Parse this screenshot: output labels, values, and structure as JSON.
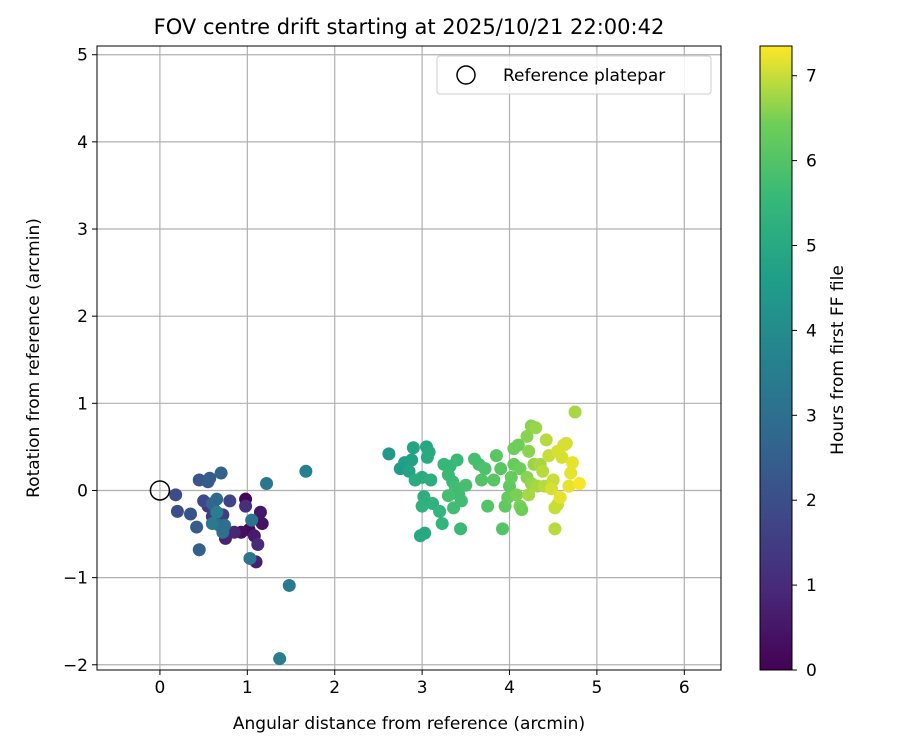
{
  "chart_data": {
    "type": "scatter",
    "title": "FOV centre drift starting at 2025/10/21 22:00:42",
    "xlabel": "Angular distance from reference (arcmin)",
    "ylabel": "Rotation from reference (arcmin)",
    "xlim": [
      -0.72,
      6.42
    ],
    "ylim": [
      -2.06,
      5.1
    ],
    "xticks": [
      0,
      1,
      2,
      3,
      4,
      5,
      6
    ],
    "yticks": [
      -2,
      -1,
      0,
      1,
      2,
      3,
      4,
      5
    ],
    "xtick_labels": [
      "0",
      "1",
      "2",
      "3",
      "4",
      "5",
      "6"
    ],
    "ytick_labels": [
      "−2",
      "−1",
      "0",
      "1",
      "2",
      "3",
      "4",
      "5"
    ],
    "grid": true,
    "legend": {
      "label": "Reference platepar",
      "placement": "top-right"
    },
    "reference_point": {
      "x": 0,
      "y": 0
    },
    "colorbar": {
      "label": "Hours from first FF file",
      "colormap": "viridis",
      "range": [
        0,
        7.35
      ],
      "ticks": [
        0,
        1,
        2,
        3,
        4,
        5,
        6,
        7
      ],
      "tick_labels": [
        "0",
        "1",
        "2",
        "3",
        "4",
        "5",
        "6",
        "7"
      ]
    },
    "points": [
      {
        "x": 0.98,
        "y": -0.1,
        "t": 0.1
      },
      {
        "x": 1.02,
        "y": -0.45,
        "t": 0.2
      },
      {
        "x": 0.93,
        "y": -0.48,
        "t": 0.3
      },
      {
        "x": 1.17,
        "y": -0.38,
        "t": 0.4
      },
      {
        "x": 1.15,
        "y": -0.25,
        "t": 0.5
      },
      {
        "x": 1.08,
        "y": -0.52,
        "t": 0.6
      },
      {
        "x": 1.1,
        "y": -0.82,
        "t": 0.7
      },
      {
        "x": 0.75,
        "y": -0.55,
        "t": 0.8
      },
      {
        "x": 0.85,
        "y": -0.48,
        "t": 0.9
      },
      {
        "x": 1.12,
        "y": -0.62,
        "t": 1.0
      },
      {
        "x": 0.98,
        "y": -0.18,
        "t": 1.1
      },
      {
        "x": 0.7,
        "y": -0.35,
        "t": 1.2
      },
      {
        "x": 0.6,
        "y": -0.3,
        "t": 1.3
      },
      {
        "x": 0.55,
        "y": -0.18,
        "t": 1.4
      },
      {
        "x": 0.72,
        "y": -0.28,
        "t": 1.5
      },
      {
        "x": 0.62,
        "y": -0.22,
        "t": 1.6
      },
      {
        "x": 0.8,
        "y": -0.12,
        "t": 1.7
      },
      {
        "x": 0.5,
        "y": -0.12,
        "t": 1.8
      },
      {
        "x": 0.18,
        "y": -0.05,
        "t": 1.9
      },
      {
        "x": 0.2,
        "y": -0.24,
        "t": 2.0
      },
      {
        "x": 0.35,
        "y": -0.27,
        "t": 2.1
      },
      {
        "x": 0.45,
        "y": 0.12,
        "t": 2.2
      },
      {
        "x": 0.55,
        "y": 0.1,
        "t": 2.3
      },
      {
        "x": 0.57,
        "y": 0.14,
        "t": 2.4
      },
      {
        "x": 0.42,
        "y": -0.42,
        "t": 2.4
      },
      {
        "x": 0.45,
        "y": -0.68,
        "t": 2.5
      },
      {
        "x": 0.7,
        "y": 0.2,
        "t": 2.6
      },
      {
        "x": 0.6,
        "y": -0.15,
        "t": 2.7
      },
      {
        "x": 0.65,
        "y": -0.1,
        "t": 2.8
      },
      {
        "x": 0.68,
        "y": -0.4,
        "t": 2.9
      },
      {
        "x": 0.72,
        "y": -0.48,
        "t": 3.0
      },
      {
        "x": 0.74,
        "y": -0.4,
        "t": 3.0
      },
      {
        "x": 1.05,
        "y": -0.34,
        "t": 3.1
      },
      {
        "x": 1.03,
        "y": -0.78,
        "t": 3.2
      },
      {
        "x": 1.22,
        "y": 0.08,
        "t": 3.3
      },
      {
        "x": 1.48,
        "y": -1.09,
        "t": 3.4
      },
      {
        "x": 1.37,
        "y": -1.93,
        "t": 3.5
      },
      {
        "x": 1.67,
        "y": 0.22,
        "t": 3.6
      },
      {
        "x": 0.6,
        "y": -0.38,
        "t": 3.4
      },
      {
        "x": 0.65,
        "y": -0.25,
        "t": 3.5
      },
      {
        "x": 2.62,
        "y": 0.42,
        "t": 4.4
      },
      {
        "x": 2.75,
        "y": 0.25,
        "t": 4.5
      },
      {
        "x": 2.8,
        "y": 0.32,
        "t": 4.6
      },
      {
        "x": 2.88,
        "y": 0.35,
        "t": 4.7
      },
      {
        "x": 2.9,
        "y": 0.49,
        "t": 4.8
      },
      {
        "x": 2.85,
        "y": 0.22,
        "t": 4.8
      },
      {
        "x": 3.05,
        "y": 0.5,
        "t": 4.9
      },
      {
        "x": 3.08,
        "y": 0.44,
        "t": 5.0
      },
      {
        "x": 3.06,
        "y": 0.38,
        "t": 5.0
      },
      {
        "x": 2.92,
        "y": 0.12,
        "t": 5.1
      },
      {
        "x": 3.0,
        "y": 0.15,
        "t": 5.1
      },
      {
        "x": 3.1,
        "y": 0.12,
        "t": 5.2
      },
      {
        "x": 3.02,
        "y": -0.07,
        "t": 5.2
      },
      {
        "x": 3.0,
        "y": -0.18,
        "t": 5.3
      },
      {
        "x": 3.12,
        "y": -0.15,
        "t": 5.3
      },
      {
        "x": 3.2,
        "y": -0.24,
        "t": 5.4
      },
      {
        "x": 3.23,
        "y": -0.38,
        "t": 5.4
      },
      {
        "x": 2.98,
        "y": -0.52,
        "t": 5.0
      },
      {
        "x": 3.03,
        "y": -0.49,
        "t": 5.0
      },
      {
        "x": 3.25,
        "y": 0.3,
        "t": 5.5
      },
      {
        "x": 3.32,
        "y": 0.28,
        "t": 5.5
      },
      {
        "x": 3.4,
        "y": 0.35,
        "t": 5.6
      },
      {
        "x": 3.3,
        "y": 0.18,
        "t": 5.6
      },
      {
        "x": 3.35,
        "y": 0.1,
        "t": 5.6
      },
      {
        "x": 3.38,
        "y": 0.04,
        "t": 5.7
      },
      {
        "x": 3.42,
        "y": -0.05,
        "t": 5.7
      },
      {
        "x": 3.45,
        "y": -0.12,
        "t": 5.7
      },
      {
        "x": 3.36,
        "y": -0.2,
        "t": 5.7
      },
      {
        "x": 3.44,
        "y": -0.44,
        "t": 5.6
      },
      {
        "x": 3.3,
        "y": -0.06,
        "t": 5.8
      },
      {
        "x": 3.5,
        "y": 0.06,
        "t": 5.8
      },
      {
        "x": 3.6,
        "y": 0.36,
        "t": 5.8
      },
      {
        "x": 3.65,
        "y": 0.3,
        "t": 5.8
      },
      {
        "x": 3.72,
        "y": 0.25,
        "t": 5.9
      },
      {
        "x": 3.68,
        "y": 0.12,
        "t": 6.0
      },
      {
        "x": 3.75,
        "y": -0.18,
        "t": 6.0
      },
      {
        "x": 3.82,
        "y": 0.12,
        "t": 6.1
      },
      {
        "x": 3.85,
        "y": 0.4,
        "t": 6.1
      },
      {
        "x": 3.9,
        "y": 0.25,
        "t": 6.1
      },
      {
        "x": 3.92,
        "y": -0.44,
        "t": 6.0
      },
      {
        "x": 3.95,
        "y": -0.18,
        "t": 6.2
      },
      {
        "x": 4.0,
        "y": 0.05,
        "t": 6.2
      },
      {
        "x": 3.98,
        "y": -0.08,
        "t": 6.3
      },
      {
        "x": 4.02,
        "y": 0.15,
        "t": 6.3
      },
      {
        "x": 4.05,
        "y": 0.3,
        "t": 6.3
      },
      {
        "x": 4.05,
        "y": 0.48,
        "t": 6.4
      },
      {
        "x": 4.1,
        "y": 0.52,
        "t": 6.4
      },
      {
        "x": 4.12,
        "y": 0.25,
        "t": 6.4
      },
      {
        "x": 4.08,
        "y": -0.05,
        "t": 6.5
      },
      {
        "x": 4.12,
        "y": -0.18,
        "t": 6.5
      },
      {
        "x": 4.14,
        "y": -0.22,
        "t": 6.4
      },
      {
        "x": 4.2,
        "y": 0.62,
        "t": 6.6
      },
      {
        "x": 4.22,
        "y": 0.45,
        "t": 6.6
      },
      {
        "x": 4.2,
        "y": 0.15,
        "t": 6.6
      },
      {
        "x": 4.25,
        "y": 0.74,
        "t": 6.6
      },
      {
        "x": 4.3,
        "y": 0.72,
        "t": 6.7
      },
      {
        "x": 4.28,
        "y": 0.3,
        "t": 6.7
      },
      {
        "x": 4.25,
        "y": 0.08,
        "t": 6.7
      },
      {
        "x": 4.22,
        "y": -0.05,
        "t": 6.8
      },
      {
        "x": 4.32,
        "y": 0.05,
        "t": 6.8
      },
      {
        "x": 4.35,
        "y": 0.3,
        "t": 6.8
      },
      {
        "x": 4.38,
        "y": 0.22,
        "t": 6.9
      },
      {
        "x": 4.42,
        "y": 0.58,
        "t": 6.9
      },
      {
        "x": 4.4,
        "y": 0.05,
        "t": 6.9
      },
      {
        "x": 4.45,
        "y": 0.4,
        "t": 7.0
      },
      {
        "x": 4.5,
        "y": 0.12,
        "t": 7.0
      },
      {
        "x": 4.52,
        "y": -0.2,
        "t": 7.0
      },
      {
        "x": 4.55,
        "y": -0.16,
        "t": 7.0
      },
      {
        "x": 4.52,
        "y": -0.44,
        "t": 6.9
      },
      {
        "x": 4.55,
        "y": 0.45,
        "t": 7.1
      },
      {
        "x": 4.6,
        "y": 0.38,
        "t": 7.1
      },
      {
        "x": 4.62,
        "y": 0.52,
        "t": 7.1
      },
      {
        "x": 4.65,
        "y": 0.54,
        "t": 7.1
      },
      {
        "x": 4.68,
        "y": 0.05,
        "t": 7.2
      },
      {
        "x": 4.7,
        "y": 0.2,
        "t": 7.2
      },
      {
        "x": 4.75,
        "y": 0.9,
        "t": 6.8
      },
      {
        "x": 4.8,
        "y": 0.08,
        "t": 7.3
      },
      {
        "x": 4.72,
        "y": 0.32,
        "t": 7.2
      },
      {
        "x": 4.48,
        "y": 0.02,
        "t": 7.1
      },
      {
        "x": 4.58,
        "y": -0.08,
        "t": 7.2
      }
    ]
  }
}
